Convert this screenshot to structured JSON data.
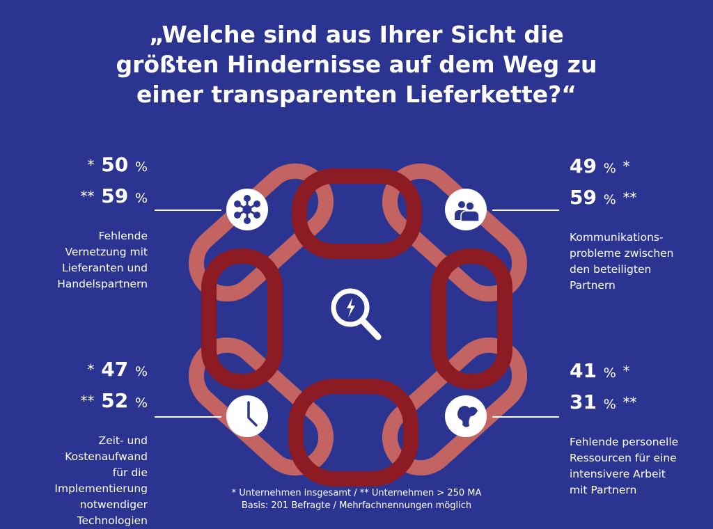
{
  "title": {
    "lines": [
      "„Welche sind aus Ihrer Sicht die",
      "größten Hindernisse auf dem Weg zu",
      "einer transparenten Lieferkette?“"
    ]
  },
  "legend_marks": {
    "all": "*",
    "large": "**",
    "percent": "%"
  },
  "quadrants": [
    {
      "id": "top-left",
      "icon": "network-icon",
      "all": "50",
      "large": "59",
      "description": [
        "Fehlende",
        "Vernetzung mit",
        "Lieferanten und",
        "Handelspartnern"
      ]
    },
    {
      "id": "top-right",
      "icon": "people-icon",
      "all": "49",
      "large": "59",
      "description": [
        "Kommunikations-",
        "probleme zwischen",
        "den beteiligten",
        "Partnern"
      ]
    },
    {
      "id": "bottom-left",
      "icon": "clock-icon",
      "all": "47",
      "large": "52",
      "description": [
        "Zeit- und",
        "Kostenaufwand",
        "für die",
        "Implementierung",
        "notwendiger",
        "Technologien"
      ]
    },
    {
      "id": "bottom-right",
      "icon": "globe-icon",
      "all": "41",
      "large": "31",
      "description": [
        "Fehlende personelle",
        "Ressourcen für eine",
        "intensivere Arbeit",
        "mit Partnern"
      ]
    }
  ],
  "center_icon": "magnifier-lightning-icon",
  "footnote": {
    "line1": "* Unternehmen insgesamt / ** Unternehmen > 250 MA",
    "line2": "Basis: 201 Befragte / Mehrfachnennungen möglich"
  },
  "colors": {
    "background": "#2b3591",
    "chain_dark": "#8c1b24",
    "chain_light": "#c46462",
    "text": "#ffffff"
  }
}
